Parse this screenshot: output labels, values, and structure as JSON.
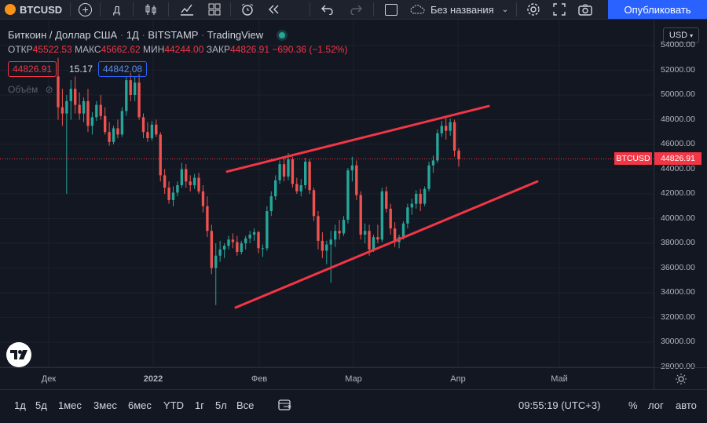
{
  "toolbar": {
    "symbol": "BTCUSD",
    "interval": "Д",
    "layout_name": "Без названия",
    "publish_label": "Опубликовать"
  },
  "legend": {
    "title": "Биткоин / Доллар США",
    "interval": "1Д",
    "exchange": "BITSTAMP",
    "source": "TradingView",
    "open_label": "ОТКР",
    "open": "45522.53",
    "high_label": "МАКС",
    "high": "45662.62",
    "low_label": "МИН",
    "low": "44244.00",
    "close_label": "ЗАКР",
    "close": "44826.91",
    "change": "−690.36 (−1.52%)",
    "bid": "44826.91",
    "spread": "15.17",
    "ask": "44842.08",
    "volume_label": "Объём"
  },
  "price_axis": {
    "currency": "USD",
    "ticks": [
      "54000.00",
      "52000.00",
      "50000.00",
      "48000.00",
      "46000.00",
      "44000.00",
      "42000.00",
      "40000.00",
      "38000.00",
      "36000.00",
      "34000.00",
      "32000.00",
      "30000.00",
      "28000.00"
    ],
    "symbol_tag": "BTCUSD",
    "last_price_tag": "44826.91"
  },
  "time_axis": {
    "ticks": [
      "Дек",
      "2022",
      "Фев",
      "Мар",
      "Апр",
      "Май"
    ]
  },
  "bottom": {
    "ranges": [
      "1д",
      "5д",
      "1мес",
      "3мес",
      "6мес",
      "YTD",
      "1г",
      "5л",
      "Все"
    ],
    "clock": "09:55:19 (UTC+3)",
    "percent": "%",
    "log": "лог",
    "auto": "авто"
  },
  "colors": {
    "up": "#26a69a",
    "down": "#ef5350",
    "trendline": "#f23645",
    "background": "#131722"
  },
  "chart_data": {
    "type": "candlestick",
    "symbol": "BTCUSD",
    "ylim": [
      28000,
      54000
    ],
    "x_ticks": [
      "Дек",
      "2022",
      "Фев",
      "Мар",
      "Апр",
      "Май"
    ],
    "candles_ohlc": [
      [
        51500,
        53000,
        48000,
        49000
      ],
      [
        49000,
        50500,
        47500,
        48500
      ],
      [
        48500,
        50000,
        42000,
        49500
      ],
      [
        49500,
        51200,
        48000,
        50500
      ],
      [
        50500,
        51500,
        48500,
        49200
      ],
      [
        49200,
        50200,
        48000,
        48500
      ],
      [
        48500,
        49800,
        47800,
        49500
      ],
      [
        49500,
        50500,
        47000,
        47500
      ],
      [
        47500,
        48600,
        46800,
        48200
      ],
      [
        48200,
        49500,
        47900,
        49200
      ],
      [
        49200,
        50000,
        48000,
        48300
      ],
      [
        48300,
        49000,
        46800,
        47000
      ],
      [
        47000,
        47800,
        45900,
        46200
      ],
      [
        46200,
        47500,
        46000,
        47300
      ],
      [
        47300,
        48000,
        46500,
        46800
      ],
      [
        46800,
        49000,
        46600,
        48700
      ],
      [
        48700,
        51500,
        48300,
        51200
      ],
      [
        51200,
        51800,
        49500,
        50000
      ],
      [
        50000,
        51500,
        49500,
        51000
      ],
      [
        51000,
        51700,
        48000,
        48200
      ],
      [
        48200,
        48500,
        46500,
        47000
      ],
      [
        47000,
        47800,
        46200,
        46500
      ],
      [
        46500,
        47900,
        46300,
        47600
      ],
      [
        47600,
        48000,
        46600,
        46800
      ],
      [
        46800,
        47000,
        43000,
        43500
      ],
      [
        43500,
        44000,
        42000,
        42500
      ],
      [
        42500,
        43000,
        41200,
        41500
      ],
      [
        41500,
        42600,
        41000,
        42100
      ],
      [
        42100,
        43000,
        41800,
        42700
      ],
      [
        42700,
        44500,
        42500,
        44000
      ],
      [
        44000,
        44400,
        42500,
        43000
      ],
      [
        43000,
        43500,
        42200,
        42700
      ],
      [
        42700,
        43600,
        42400,
        43300
      ],
      [
        43300,
        43700,
        42000,
        42200
      ],
      [
        42200,
        42700,
        40500,
        41000
      ],
      [
        41000,
        41800,
        38500,
        39000
      ],
      [
        39000,
        39500,
        35500,
        36000
      ],
      [
        36000,
        38000,
        33000,
        37000
      ],
      [
        37000,
        38200,
        36500,
        37500
      ],
      [
        37500,
        38000,
        36800,
        37800
      ],
      [
        37800,
        38600,
        37500,
        38300
      ],
      [
        38300,
        38800,
        37600,
        38100
      ],
      [
        38100,
        38600,
        37000,
        37300
      ],
      [
        37300,
        38200,
        37100,
        38000
      ],
      [
        38000,
        38600,
        37500,
        38400
      ],
      [
        38400,
        39000,
        38000,
        38700
      ],
      [
        38700,
        39200,
        38200,
        38900
      ],
      [
        38900,
        39000,
        37200,
        37600
      ],
      [
        37600,
        37900,
        36900,
        37600
      ],
      [
        37600,
        41000,
        37400,
        40600
      ],
      [
        40600,
        42200,
        40200,
        41800
      ],
      [
        41800,
        43500,
        41500,
        43100
      ],
      [
        43100,
        44700,
        42800,
        44400
      ],
      [
        44400,
        44900,
        43000,
        43400
      ],
      [
        43400,
        45300,
        43100,
        44800
      ],
      [
        44800,
        45000,
        42500,
        42800
      ],
      [
        42800,
        43300,
        42000,
        42200
      ],
      [
        42200,
        43200,
        41800,
        42700
      ],
      [
        42700,
        44900,
        42400,
        44600
      ],
      [
        44600,
        44800,
        42000,
        42300
      ],
      [
        42300,
        42500,
        39800,
        40200
      ],
      [
        40200,
        40600,
        37500,
        38200
      ],
      [
        38200,
        38900,
        36800,
        37400
      ],
      [
        37400,
        38200,
        36300,
        37900
      ],
      [
        37900,
        39000,
        34800,
        38300
      ],
      [
        38300,
        39500,
        37700,
        39000
      ],
      [
        39000,
        39900,
        38300,
        38800
      ],
      [
        38800,
        40200,
        38600,
        39900
      ],
      [
        39900,
        44100,
        39600,
        43900
      ],
      [
        43900,
        45000,
        43000,
        44300
      ],
      [
        44300,
        44700,
        41500,
        41900
      ],
      [
        41900,
        42200,
        38300,
        38700
      ],
      [
        38700,
        39600,
        38000,
        39000
      ],
      [
        39000,
        39500,
        37000,
        37500
      ],
      [
        37500,
        38700,
        37300,
        38500
      ],
      [
        38500,
        39500,
        38000,
        38300
      ],
      [
        38300,
        42500,
        38100,
        42200
      ],
      [
        42200,
        42600,
        40500,
        40800
      ],
      [
        40800,
        41200,
        38700,
        39200
      ],
      [
        39200,
        39700,
        37700,
        38100
      ],
      [
        38100,
        38700,
        37600,
        38500
      ],
      [
        38500,
        39800,
        38300,
        39600
      ],
      [
        39600,
        41200,
        39200,
        40900
      ],
      [
        40900,
        41600,
        40300,
        41200
      ],
      [
        41200,
        42300,
        40800,
        42000
      ],
      [
        42000,
        42400,
        40600,
        41200
      ],
      [
        41200,
        42600,
        41000,
        42400
      ],
      [
        42400,
        44600,
        42200,
        44300
      ],
      [
        44300,
        45100,
        43700,
        44700
      ],
      [
        44700,
        47200,
        44500,
        46900
      ],
      [
        46900,
        47900,
        46600,
        47500
      ],
      [
        47500,
        48200,
        46400,
        47100
      ],
      [
        47100,
        48100,
        46700,
        47800
      ],
      [
        47800,
        48000,
        45000,
        45500
      ],
      [
        45500,
        45700,
        44200,
        44800
      ]
    ],
    "last_price": 44826.91,
    "trendlines": [
      {
        "from": [
          "late Jan",
          43800
        ],
        "to": [
          "early Apr",
          49100
        ]
      },
      {
        "from": [
          "late Jan",
          32800
        ],
        "to": [
          "mid Apr",
          43000
        ]
      }
    ]
  }
}
